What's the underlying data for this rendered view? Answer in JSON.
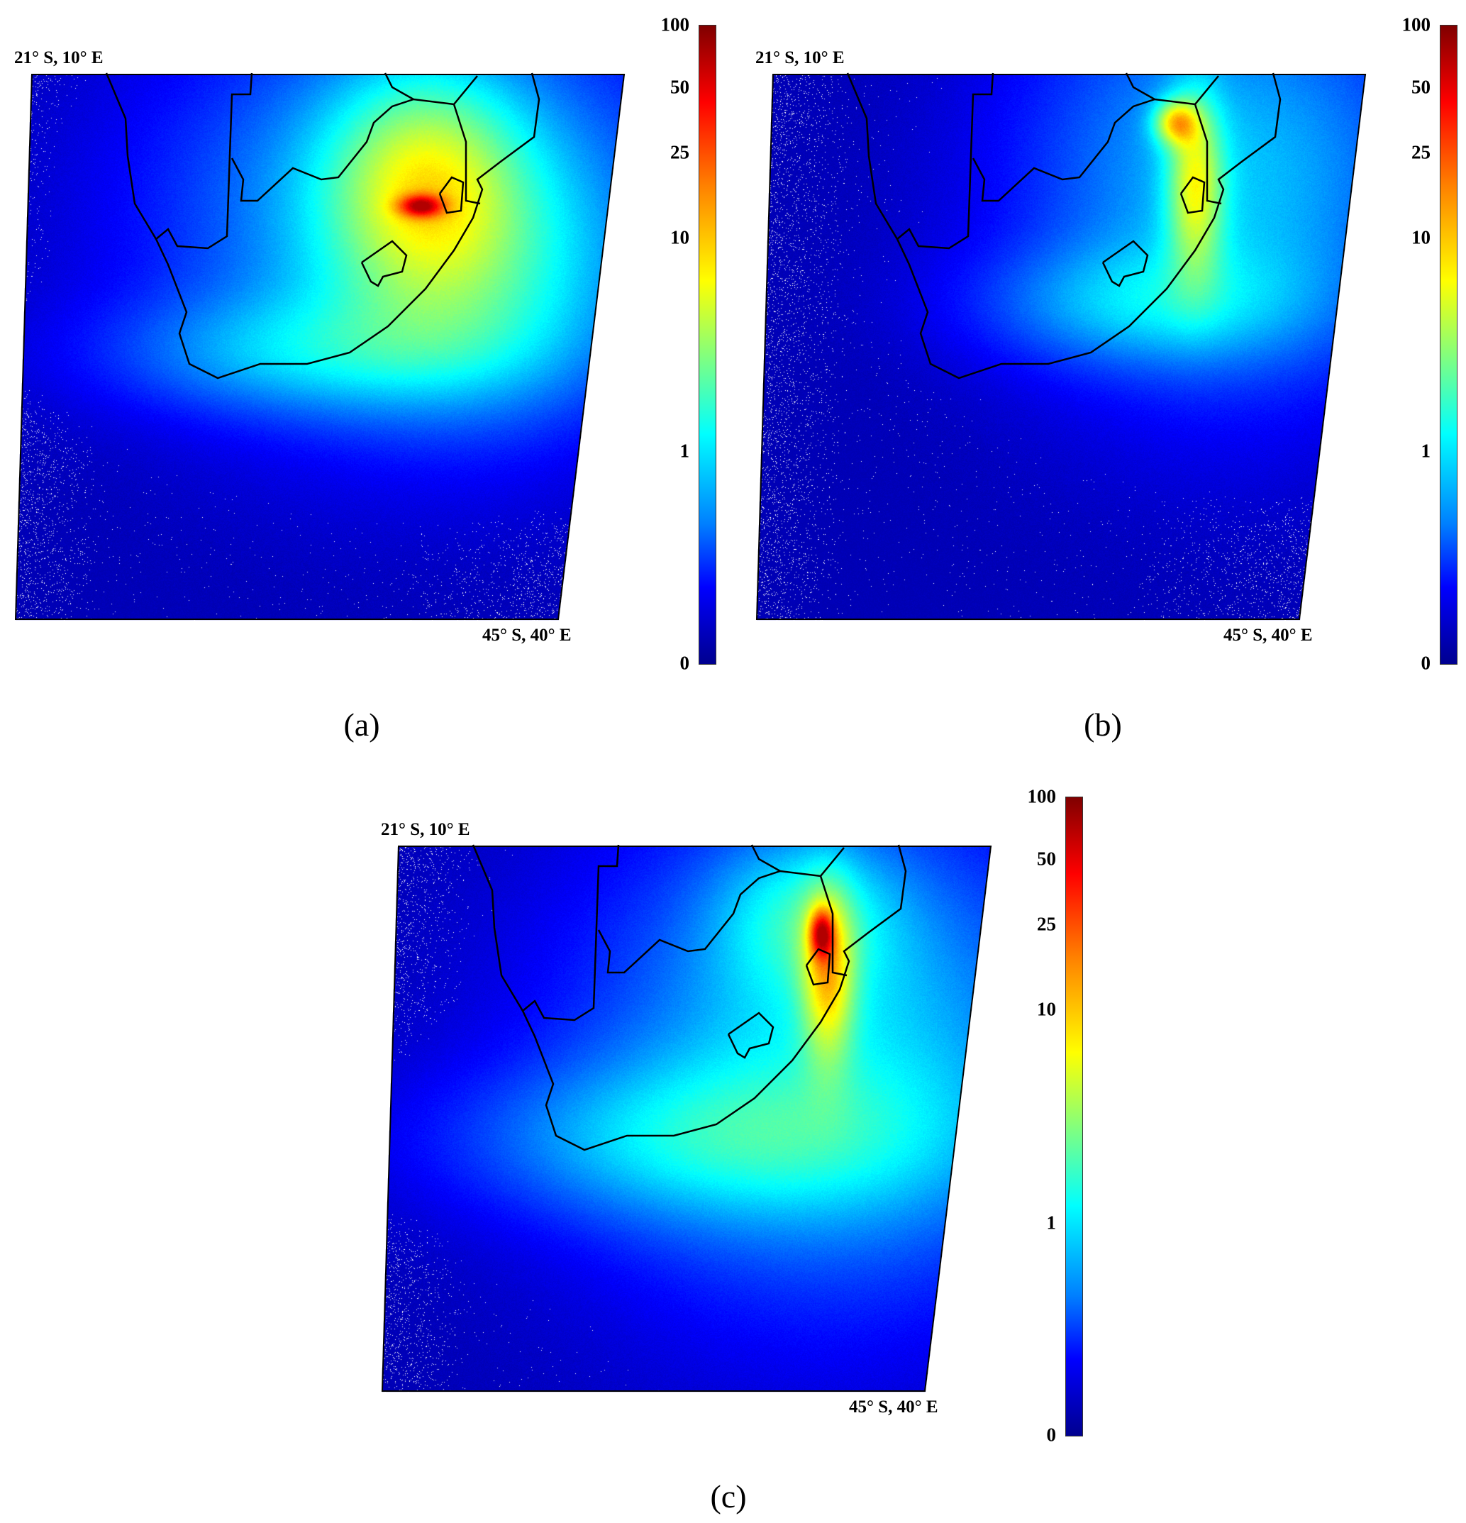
{
  "chart_data": [
    {
      "type": "heatmap",
      "panel_label": "(a)",
      "corner_top_left": "21° S, 10° E",
      "corner_bottom_right": "45° S, 40° E",
      "colormap": "jet",
      "colorbar_ticks": [
        "100",
        "50",
        "25",
        "10",
        "1",
        "0"
      ],
      "colorbar_range": [
        0,
        100
      ],
      "peak_region": "inland, west of Swaziland"
    },
    {
      "type": "heatmap",
      "panel_label": "(b)",
      "corner_top_left": "21° S, 10° E",
      "corner_bottom_right": "45° S, 40° E",
      "colormap": "jet",
      "colorbar_ticks": [
        "100",
        "50",
        "25",
        "10",
        "1",
        "0"
      ],
      "colorbar_range": [
        0,
        100
      ],
      "peak_region": "north-east, plume along east coast"
    },
    {
      "type": "heatmap",
      "panel_label": "(c)",
      "corner_top_left": "21° S, 10° E",
      "corner_bottom_right": "45° S, 40° E",
      "colormap": "jet",
      "colorbar_ticks": [
        "100",
        "50",
        "25",
        "10",
        "1",
        "0"
      ],
      "colorbar_range": [
        0,
        100
      ],
      "peak_region": "north of Swaziland, plume along east coast"
    }
  ],
  "colors": {
    "background_low": "#00008f",
    "outline": "#000000",
    "sparse_cells": "#ffffff"
  }
}
